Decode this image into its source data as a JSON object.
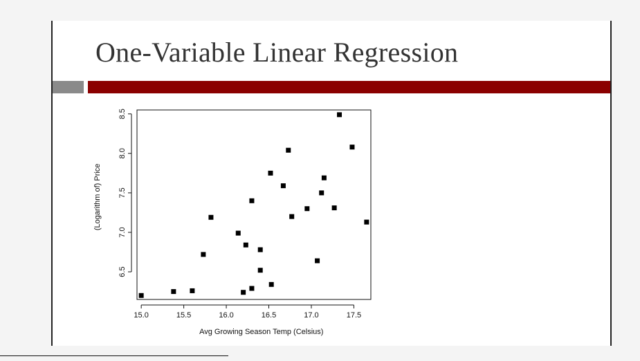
{
  "slide": {
    "title": "One-Variable Linear Regression",
    "accent_color": "#8b0000",
    "bar_gray_color": "#8a8a8a"
  },
  "chart_data": {
    "type": "scatter",
    "title": "",
    "xlabel": "Avg Growing Season Temp (Celsius)",
    "ylabel": "(Logarithm of) Price",
    "xlim": [
      14.95,
      17.7
    ],
    "ylim": [
      6.15,
      8.55
    ],
    "xticks": [
      "15.0",
      "15.5",
      "16.0",
      "16.5",
      "17.0",
      "17.5"
    ],
    "yticks": [
      "6.5",
      "7.0",
      "7.5",
      "8.0",
      "8.5"
    ],
    "grid": false,
    "marker": "square",
    "marker_color": "#000000",
    "points": [
      {
        "x": 15.0,
        "y": 6.2
      },
      {
        "x": 15.38,
        "y": 6.25
      },
      {
        "x": 15.6,
        "y": 6.26
      },
      {
        "x": 15.73,
        "y": 6.72
      },
      {
        "x": 15.82,
        "y": 7.19
      },
      {
        "x": 16.14,
        "y": 6.99
      },
      {
        "x": 16.2,
        "y": 6.24
      },
      {
        "x": 16.23,
        "y": 6.84
      },
      {
        "x": 16.3,
        "y": 6.29
      },
      {
        "x": 16.3,
        "y": 7.4
      },
      {
        "x": 16.4,
        "y": 6.78
      },
      {
        "x": 16.4,
        "y": 6.52
      },
      {
        "x": 16.53,
        "y": 6.34
      },
      {
        "x": 16.52,
        "y": 7.75
      },
      {
        "x": 16.67,
        "y": 7.59
      },
      {
        "x": 16.73,
        "y": 8.04
      },
      {
        "x": 16.77,
        "y": 7.2
      },
      {
        "x": 16.95,
        "y": 7.3
      },
      {
        "x": 17.07,
        "y": 6.64
      },
      {
        "x": 17.12,
        "y": 7.5
      },
      {
        "x": 17.15,
        "y": 7.69
      },
      {
        "x": 17.27,
        "y": 7.31
      },
      {
        "x": 17.33,
        "y": 8.49
      },
      {
        "x": 17.48,
        "y": 8.08
      },
      {
        "x": 17.65,
        "y": 7.13
      }
    ]
  }
}
